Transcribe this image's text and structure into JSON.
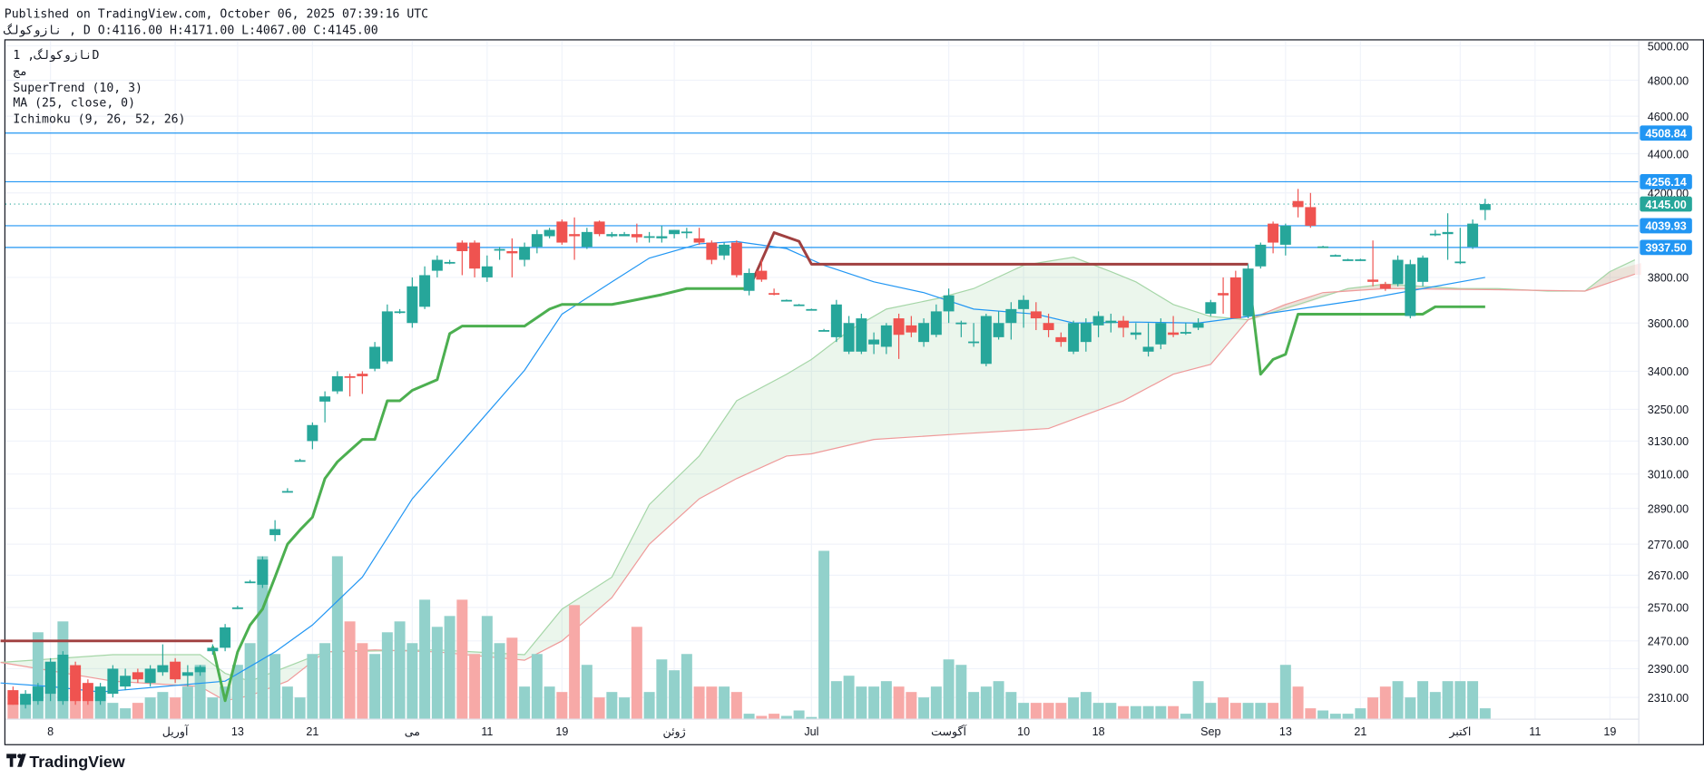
{
  "header": {
    "published": "Published on TradingView.com, October 06, 2025 07:39:16 UTC",
    "ohlc_line": "نازوکولگ , D O:4116.00 H:4171.00 L:4067.00 C:4145.00"
  },
  "legend": {
    "symbol": "نازوکولگ, 1D",
    "exchange": "مج",
    "supertrend": "SuperTrend (10, 3)",
    "ma": "MA (25, close, 0)",
    "ichimoku": "Ichimoku (9, 26, 52, 26)"
  },
  "logo": "TradingView",
  "colors": {
    "up": "#26a69a",
    "down": "#ef5350",
    "up_vol": "#92d1cb",
    "down_vol": "#f7a9a7",
    "ma": "#2196f3",
    "st_up": "#4caf50",
    "st_down": "#a04040",
    "hline": "#2196f3",
    "last": "#26a69a",
    "spanA": "#a5d6a7",
    "spanB": "#ef9a9a"
  },
  "chart_data": {
    "type": "candlestick",
    "scale": "log",
    "ylim": [
      2270,
      5050
    ],
    "y_ticks": [
      "5000.00",
      "4800.00",
      "4600.00",
      "4400.00",
      "4200.00",
      "3800.00",
      "3600.00",
      "3400.00",
      "3250.00",
      "3130.00",
      "3010.00",
      "2890.00",
      "2770.00",
      "2670.00",
      "2570.00",
      "2470.00",
      "2390.00",
      "2310.00"
    ],
    "x_ticks": [
      {
        "i": 3,
        "label": "8"
      },
      {
        "i": 13,
        "label": "آوریل"
      },
      {
        "i": 18,
        "label": "13"
      },
      {
        "i": 24,
        "label": "21"
      },
      {
        "i": 32,
        "label": "می"
      },
      {
        "i": 38,
        "label": "11"
      },
      {
        "i": 44,
        "label": "19"
      },
      {
        "i": 53,
        "label": "ژوئن"
      },
      {
        "i": 64,
        "label": "Jul"
      },
      {
        "i": 75,
        "label": "آگوست"
      },
      {
        "i": 81,
        "label": "10"
      },
      {
        "i": 87,
        "label": "18"
      },
      {
        "i": 96,
        "label": "Sep"
      },
      {
        "i": 102,
        "label": "13"
      },
      {
        "i": 108,
        "label": "21"
      },
      {
        "i": 116,
        "label": "اکتبر"
      },
      {
        "i": 122,
        "label": "11"
      },
      {
        "i": 128,
        "label": "19"
      }
    ],
    "price_lines": [
      {
        "value": 4508.84,
        "label": "4508.84"
      },
      {
        "value": 4256.14,
        "label": "4256.14"
      },
      {
        "value": 4039.93,
        "label": "4039.93"
      },
      {
        "value": 3937.5,
        "label": "3937.50"
      }
    ],
    "last_price": {
      "value": 4145.0,
      "label": "4145.00"
    },
    "ohlc": [
      [
        2330,
        2340,
        2290,
        2290
      ],
      [
        2290,
        2330,
        2280,
        2320
      ],
      [
        2300,
        2350,
        2290,
        2340
      ],
      [
        2320,
        2420,
        2300,
        2410
      ],
      [
        2300,
        2440,
        2290,
        2430
      ],
      [
        2400,
        2410,
        2290,
        2300
      ],
      [
        2350,
        2360,
        2290,
        2300
      ],
      [
        2300,
        2350,
        2290,
        2340
      ],
      [
        2320,
        2400,
        2310,
        2390
      ],
      [
        2340,
        2390,
        2330,
        2370
      ],
      [
        2380,
        2390,
        2350,
        2360
      ],
      [
        2350,
        2400,
        2340,
        2390
      ],
      [
        2380,
        2460,
        2370,
        2400
      ],
      [
        2410,
        2420,
        2350,
        2360
      ],
      [
        2370,
        2400,
        2340,
        2380
      ],
      [
        2380,
        2400,
        2370,
        2395
      ],
      [
        2440,
        2460,
        2430,
        2450
      ],
      [
        2450,
        2520,
        2440,
        2510
      ],
      [
        2570,
        2575,
        2565,
        2570
      ],
      [
        2650,
        2655,
        2645,
        2650
      ],
      [
        2640,
        2730,
        2630,
        2720
      ],
      [
        2800,
        2850,
        2780,
        2820
      ],
      [
        2950,
        2960,
        2945,
        2950
      ],
      [
        3060,
        3065,
        3055,
        3060
      ],
      [
        3130,
        3200,
        3100,
        3190
      ],
      [
        3280,
        3320,
        3200,
        3300
      ],
      [
        3320,
        3400,
        3310,
        3380
      ],
      [
        3380,
        3390,
        3300,
        3375
      ],
      [
        3390,
        3400,
        3310,
        3380
      ],
      [
        3410,
        3520,
        3400,
        3500
      ],
      [
        3440,
        3680,
        3430,
        3650
      ],
      [
        3650,
        3660,
        3640,
        3650
      ],
      [
        3600,
        3800,
        3580,
        3760
      ],
      [
        3670,
        3850,
        3660,
        3810
      ],
      [
        3830,
        3900,
        3800,
        3880
      ],
      [
        3870,
        3880,
        3860,
        3870
      ],
      [
        3960,
        3970,
        3810,
        3920
      ],
      [
        3960,
        3970,
        3800,
        3840
      ],
      [
        3800,
        3900,
        3780,
        3850
      ],
      [
        3930,
        3940,
        3880,
        3930
      ],
      [
        3920,
        3980,
        3800,
        3910
      ],
      [
        3880,
        3960,
        3850,
        3940
      ],
      [
        3940,
        4020,
        3910,
        4000
      ],
      [
        3990,
        4030,
        3980,
        4020
      ],
      [
        4060,
        4070,
        3950,
        3960
      ],
      [
        4000,
        4080,
        3880,
        3990
      ],
      [
        3940,
        4030,
        3930,
        4010
      ],
      [
        4060,
        4065,
        3990,
        4000
      ],
      [
        3990,
        4010,
        3985,
        4000
      ],
      [
        3990,
        4010,
        3990,
        4000
      ],
      [
        4000,
        4050,
        3960,
        3985
      ],
      [
        3985,
        4010,
        3960,
        3990
      ],
      [
        3980,
        4040,
        3960,
        3990
      ],
      [
        4000,
        4020,
        3980,
        4020
      ],
      [
        4010,
        4030,
        3980,
        4012
      ],
      [
        3980,
        4030,
        3950,
        3960
      ],
      [
        3960,
        3970,
        3860,
        3880
      ],
      [
        3900,
        3960,
        3880,
        3950
      ],
      [
        3960,
        3970,
        3800,
        3810
      ],
      [
        3740,
        3840,
        3720,
        3820
      ],
      [
        3830,
        3880,
        3780,
        3790
      ],
      [
        3730,
        3750,
        3720,
        3728
      ],
      [
        3700,
        3702,
        3698,
        3700
      ],
      [
        3680,
        3682,
        3678,
        3680
      ],
      [
        3660,
        3662,
        3658,
        3660
      ],
      [
        3570,
        3575,
        3565,
        3570
      ],
      [
        3540,
        3700,
        3520,
        3680
      ],
      [
        3480,
        3630,
        3470,
        3600
      ],
      [
        3480,
        3640,
        3470,
        3620
      ],
      [
        3510,
        3560,
        3470,
        3530
      ],
      [
        3500,
        3600,
        3470,
        3590
      ],
      [
        3620,
        3640,
        3450,
        3550
      ],
      [
        3590,
        3630,
        3540,
        3560
      ],
      [
        3520,
        3620,
        3500,
        3600
      ],
      [
        3550,
        3680,
        3540,
        3650
      ],
      [
        3650,
        3750,
        3600,
        3720
      ],
      [
        3600,
        3610,
        3540,
        3602
      ],
      [
        3520,
        3600,
        3500,
        3522
      ],
      [
        3430,
        3640,
        3420,
        3630
      ],
      [
        3540,
        3650,
        3530,
        3600
      ],
      [
        3600,
        3690,
        3530,
        3660
      ],
      [
        3660,
        3720,
        3580,
        3700
      ],
      [
        3650,
        3690,
        3570,
        3620
      ],
      [
        3600,
        3640,
        3540,
        3570
      ],
      [
        3540,
        3560,
        3500,
        3520
      ],
      [
        3480,
        3610,
        3470,
        3600
      ],
      [
        3520,
        3620,
        3480,
        3600
      ],
      [
        3590,
        3650,
        3540,
        3630
      ],
      [
        3600,
        3640,
        3560,
        3610
      ],
      [
        3610,
        3630,
        3540,
        3580
      ],
      [
        3550,
        3600,
        3530,
        3560
      ],
      [
        3480,
        3600,
        3460,
        3500
      ],
      [
        3510,
        3620,
        3490,
        3600
      ],
      [
        3560,
        3630,
        3540,
        3550
      ],
      [
        3560,
        3600,
        3550,
        3562
      ],
      [
        3580,
        3620,
        3570,
        3600
      ],
      [
        3640,
        3700,
        3630,
        3690
      ],
      [
        3730,
        3800,
        3640,
        3720
      ],
      [
        3800,
        3830,
        3620,
        3620
      ],
      [
        3630,
        3860,
        3620,
        3840
      ],
      [
        3850,
        3960,
        3840,
        3950
      ],
      [
        4050,
        4060,
        3910,
        3960
      ],
      [
        3950,
        4050,
        3900,
        4040
      ],
      [
        4160,
        4220,
        4080,
        4130
      ],
      [
        4130,
        4200,
        4030,
        4040
      ],
      [
        3940,
        3945,
        3935,
        3942
      ],
      [
        3900,
        3905,
        3895,
        3902
      ],
      [
        3880,
        3885,
        3875,
        3882
      ],
      [
        3880,
        3885,
        3875,
        3882
      ],
      [
        3790,
        3970,
        3760,
        3780
      ],
      [
        3770,
        3780,
        3740,
        3750
      ],
      [
        3770,
        3900,
        3760,
        3880
      ],
      [
        3630,
        3880,
        3620,
        3860
      ],
      [
        3780,
        3900,
        3760,
        3890
      ],
      [
        4000,
        4020,
        3990,
        4002
      ],
      [
        4000,
        4100,
        3880,
        4010
      ],
      [
        3870,
        4030,
        3860,
        3872
      ],
      [
        3940,
        4070,
        3930,
        4050
      ],
      [
        4116,
        4171,
        4067,
        4145
      ]
    ],
    "volume_relative": [
      15,
      20,
      80,
      40,
      90,
      40,
      30,
      25,
      15,
      10,
      15,
      20,
      25,
      20,
      30,
      50,
      20,
      30,
      50,
      70,
      150,
      60,
      30,
      20,
      60,
      70,
      150,
      90,
      70,
      60,
      80,
      90,
      70,
      110,
      85,
      95,
      110,
      60,
      95,
      70,
      75,
      30,
      60,
      30,
      25,
      105,
      50,
      20,
      25,
      20,
      85,
      25,
      55,
      45,
      60,
      30,
      30,
      30,
      25,
      5,
      3,
      5,
      3,
      8,
      2,
      155,
      35,
      40,
      30,
      30,
      35,
      30,
      25,
      20,
      30,
      55,
      50,
      25,
      30,
      35,
      25,
      15,
      15,
      15,
      15,
      20,
      25,
      15,
      15,
      12,
      12,
      12,
      12,
      12,
      5,
      35,
      15,
      20,
      15,
      15,
      15,
      15,
      50,
      30,
      10,
      8,
      5,
      5,
      10,
      20,
      30,
      35,
      20,
      35,
      25,
      35,
      35,
      35,
      10
    ],
    "supertrend": [
      {
        "trend": "down",
        "points": [
          [
            -1,
            2470
          ],
          [
            16,
            2470
          ]
        ]
      },
      {
        "trend": "up",
        "points": [
          [
            16,
            2454
          ],
          [
            17,
            2301
          ],
          [
            18,
            2438
          ],
          [
            19,
            2517
          ],
          [
            20,
            2565
          ],
          [
            21,
            2664
          ],
          [
            22,
            2770
          ],
          [
            23,
            2817
          ],
          [
            24,
            2860
          ],
          [
            25,
            2994
          ],
          [
            26,
            3054
          ],
          [
            27,
            3095
          ],
          [
            28,
            3136
          ],
          [
            29,
            3136
          ],
          [
            30,
            3283
          ],
          [
            31,
            3283
          ],
          [
            32,
            3324
          ],
          [
            34,
            3366
          ],
          [
            35,
            3555
          ],
          [
            36,
            3587
          ],
          [
            41,
            3587
          ],
          [
            43,
            3660
          ],
          [
            44,
            3680
          ],
          [
            48,
            3680
          ],
          [
            49,
            3690
          ],
          [
            52,
            3723
          ],
          [
            54,
            3750
          ],
          [
            59,
            3750
          ]
        ]
      },
      {
        "trend": "down",
        "points": [
          [
            59,
            3750
          ],
          [
            61,
            4007
          ],
          [
            63,
            3966
          ],
          [
            64,
            3860
          ],
          [
            99,
            3860
          ]
        ]
      },
      {
        "trend": "up",
        "points": [
          [
            99,
            3826
          ],
          [
            100,
            3388
          ],
          [
            101,
            3448
          ],
          [
            102,
            3469
          ],
          [
            103,
            3638
          ],
          [
            113,
            3638
          ],
          [
            114,
            3670
          ],
          [
            118,
            3670
          ]
        ]
      }
    ],
    "ma": [
      [
        -1,
        2350
      ],
      [
        3,
        2340
      ],
      [
        7,
        2325
      ],
      [
        12,
        2340
      ],
      [
        17,
        2355
      ],
      [
        21,
        2438
      ],
      [
        24,
        2517
      ],
      [
        28,
        2664
      ],
      [
        32,
        2923
      ],
      [
        36,
        3127
      ],
      [
        41,
        3404
      ],
      [
        44,
        3638
      ],
      [
        48,
        3780
      ],
      [
        51,
        3888
      ],
      [
        55,
        3954
      ],
      [
        58,
        3965
      ],
      [
        62,
        3932
      ],
      [
        65,
        3855
      ],
      [
        69,
        3780
      ],
      [
        73,
        3732
      ],
      [
        77,
        3660
      ],
      [
        82,
        3638
      ],
      [
        85,
        3600
      ],
      [
        90,
        3604
      ],
      [
        95,
        3600
      ],
      [
        99,
        3628
      ],
      [
        103,
        3660
      ],
      [
        108,
        3700
      ],
      [
        112,
        3740
      ],
      [
        118,
        3800
      ]
    ],
    "ichimoku_span_a": [
      [
        -1,
        2408
      ],
      [
        8,
        2430
      ],
      [
        15,
        2430
      ],
      [
        17,
        2377
      ],
      [
        19,
        2355
      ],
      [
        25,
        2438
      ],
      [
        34,
        2444
      ],
      [
        41,
        2430
      ],
      [
        44,
        2565
      ],
      [
        48,
        2664
      ],
      [
        51,
        2903
      ],
      [
        55,
        3075
      ],
      [
        58,
        3283
      ],
      [
        62,
        3388
      ],
      [
        64,
        3448
      ],
      [
        67,
        3567
      ],
      [
        70,
        3660
      ],
      [
        74,
        3705
      ],
      [
        77,
        3750
      ],
      [
        81,
        3855
      ],
      [
        85,
        3892
      ],
      [
        88,
        3826
      ],
      [
        90,
        3780
      ],
      [
        93,
        3680
      ],
      [
        96,
        3628
      ],
      [
        99,
        3614
      ],
      [
        103,
        3680
      ],
      [
        107,
        3750
      ],
      [
        110,
        3770
      ],
      [
        116,
        3750
      ],
      [
        119,
        3750
      ],
      [
        123,
        3739
      ],
      [
        126,
        3739
      ],
      [
        128,
        3826
      ],
      [
        130,
        3880
      ]
    ],
    "ichimoku_span_b": [
      [
        -1,
        2408
      ],
      [
        8,
        2355
      ],
      [
        15,
        2340
      ],
      [
        17,
        2301
      ],
      [
        19,
        2315
      ],
      [
        22,
        2355
      ],
      [
        25,
        2438
      ],
      [
        29,
        2444
      ],
      [
        34,
        2438
      ],
      [
        41,
        2414
      ],
      [
        44,
        2470
      ],
      [
        48,
        2600
      ],
      [
        51,
        2770
      ],
      [
        55,
        2923
      ],
      [
        58,
        2994
      ],
      [
        62,
        3075
      ],
      [
        64,
        3083
      ],
      [
        69,
        3136
      ],
      [
        76,
        3157
      ],
      [
        83,
        3177
      ],
      [
        89,
        3283
      ],
      [
        93,
        3388
      ],
      [
        96,
        3428
      ],
      [
        99,
        3614
      ],
      [
        102,
        3680
      ],
      [
        105,
        3732
      ],
      [
        110,
        3750
      ],
      [
        119,
        3745
      ],
      [
        126,
        3739
      ],
      [
        130,
        3815
      ]
    ]
  }
}
